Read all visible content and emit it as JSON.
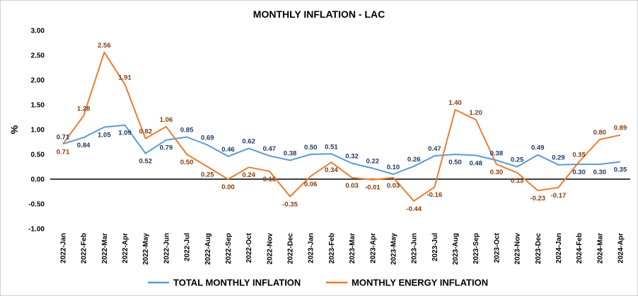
{
  "chart_data": {
    "type": "line",
    "title": "MONTHLY INFLATION  - LAC",
    "xlabel": "",
    "ylabel": "%",
    "ylim": [
      -1.0,
      3.0
    ],
    "yticks": [
      -1.0,
      -0.5,
      0.0,
      0.5,
      1.0,
      1.5,
      2.0,
      2.5,
      3.0
    ],
    "ytick_labels": [
      "-1.00",
      "-0.50",
      "0.00",
      "0.50",
      "1.00",
      "1.50",
      "2.00",
      "2.50",
      "3.00"
    ],
    "grid": false,
    "legend_position": "bottom",
    "categories": [
      "2022-Jan",
      "2022-Feb",
      "2022-Mar",
      "2022-Apr",
      "2022-May",
      "2022-Jun",
      "2022-Jul",
      "2022-Aug",
      "2022-Sep",
      "2022-Oct",
      "2022-Nov",
      "2022-Dec",
      "2023-Jan",
      "2023-Feb",
      "2023-Mar",
      "2023-Apr",
      "2023-May",
      "2023-Jun",
      "2023-Jul",
      "2023-Aug",
      "2023-Sep",
      "2023-Oct",
      "2023-Nov",
      "2023-Dec",
      "2024-Jan",
      "2024-Feb",
      "2024-Mar",
      "2024-Apr"
    ],
    "series": [
      {
        "name": "TOTAL MONTHLY INFLATION",
        "color": "#5b9bd5",
        "label_color": "#1f3864",
        "values": [
          0.71,
          0.84,
          1.05,
          1.09,
          0.52,
          0.79,
          0.85,
          0.69,
          0.46,
          0.62,
          0.47,
          0.38,
          0.5,
          0.51,
          0.32,
          0.22,
          0.1,
          0.26,
          0.47,
          0.5,
          0.48,
          0.38,
          0.25,
          0.49,
          0.29,
          0.3,
          0.3,
          0.35
        ],
        "labels": [
          "0.71",
          "0.84",
          "1.05",
          "1.09",
          "0.52",
          "0.79",
          "0.85",
          "0.69",
          "0.46",
          "0.62",
          "0.47",
          "0.38",
          "0.50",
          "0.51",
          "0.32",
          "0.22",
          "0.10",
          "0.26",
          "0.47",
          "0.50",
          "0.48",
          "0.38",
          "0.25",
          "0.49",
          "0.29",
          "0.30",
          "0.30",
          "0.35"
        ]
      },
      {
        "name": "MONTHLY ENERGY INFLATION",
        "color": "#ed7d31",
        "label_color": "#843c0c",
        "values": [
          0.71,
          1.28,
          2.56,
          1.91,
          0.82,
          1.06,
          0.5,
          0.25,
          0.0,
          0.24,
          0.16,
          -0.35,
          0.06,
          0.34,
          0.03,
          -0.01,
          0.03,
          -0.44,
          -0.16,
          1.4,
          1.2,
          0.3,
          0.13,
          -0.23,
          -0.17,
          0.35,
          0.8,
          0.89
        ],
        "labels": [
          "0.71",
          "1.28",
          "2.56",
          "1.91",
          "0.82",
          "1.06",
          "0.50",
          "0.25",
          "0.00",
          "0.24",
          "0.16",
          "-0.35",
          "0.06",
          "0.34",
          "0.03",
          "-0.01",
          "0.03",
          "-0.44",
          "-0.16",
          "1.40",
          "1.20",
          "0.30",
          "0.13",
          "-0.23",
          "-0.17",
          "0.35",
          "0.80",
          "0.89"
        ]
      }
    ]
  }
}
